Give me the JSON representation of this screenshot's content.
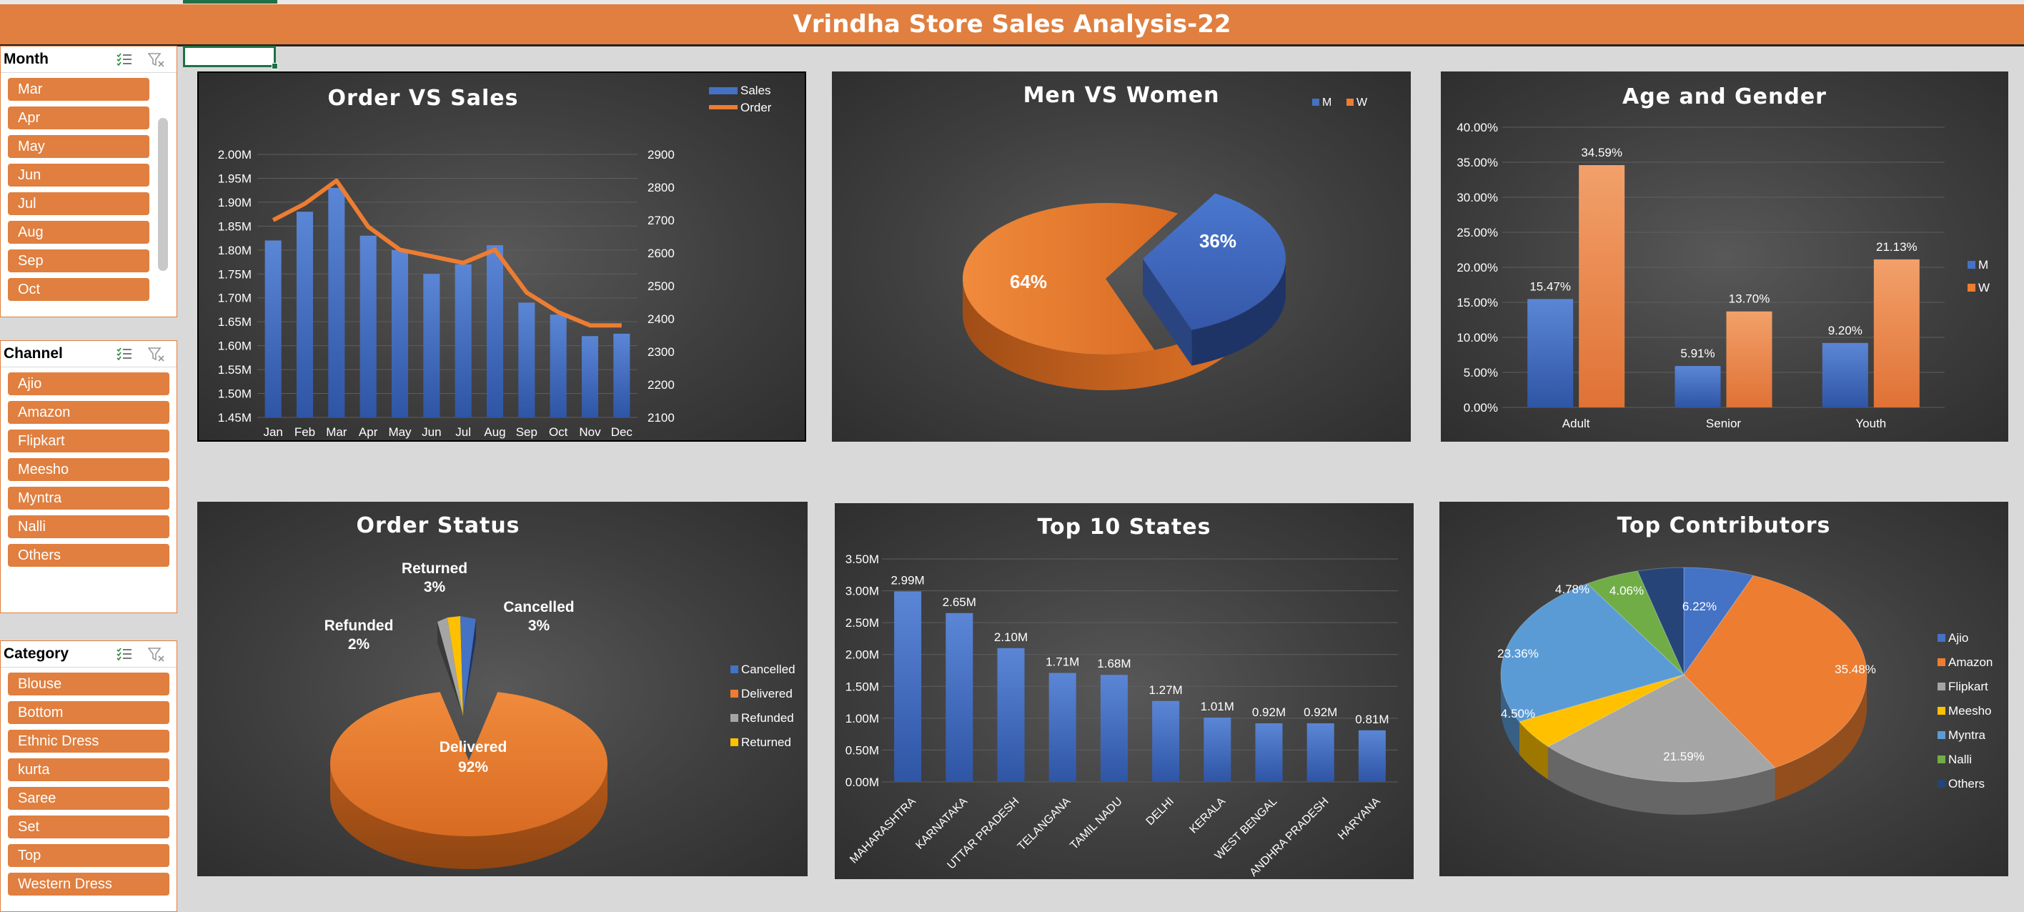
{
  "banner": {
    "title": "Vrindha Store Sales Analysis-22"
  },
  "slicers": {
    "month": {
      "title": "Month",
      "items": [
        "Mar",
        "Apr",
        "May",
        "Jun",
        "Jul",
        "Aug",
        "Sep",
        "Oct"
      ]
    },
    "channel": {
      "title": "Channel",
      "items": [
        "Ajio",
        "Amazon",
        "Flipkart",
        "Meesho",
        "Myntra",
        "Nalli",
        "Others"
      ]
    },
    "category": {
      "title": "Category",
      "items": [
        "Blouse",
        "Bottom",
        "Ethnic Dress",
        "kurta",
        "Saree",
        "Set",
        "Top",
        "Western Dress"
      ]
    }
  },
  "colors": {
    "accent": "#e07f3f",
    "blue": "#4472c4",
    "orange": "#ed7d31",
    "gray": "#a5a5a5",
    "yellow": "#ffc000",
    "lightblue": "#5b9bd5",
    "green": "#70ad47",
    "navy": "#264478"
  },
  "chart_data": [
    {
      "id": "order-vs-sales",
      "type": "bar",
      "title": "Order VS Sales",
      "categories": [
        "Jan",
        "Feb",
        "Mar",
        "Apr",
        "May",
        "Jun",
        "Jul",
        "Aug",
        "Sep",
        "Oct",
        "Nov",
        "Dec"
      ],
      "series": [
        {
          "name": "Sales",
          "type": "bar",
          "axis": "left",
          "values": [
            1.82,
            1.88,
            1.93,
            1.83,
            1.8,
            1.75,
            1.77,
            1.81,
            1.69,
            1.665,
            1.62,
            1.625
          ]
        },
        {
          "name": "Order",
          "type": "line",
          "axis": "right",
          "values": [
            2700,
            2750,
            2820,
            2680,
            2610,
            2590,
            2570,
            2610,
            2480,
            2420,
            2380,
            2380
          ]
        }
      ],
      "left_ticks": [
        "1.45M",
        "1.50M",
        "1.55M",
        "1.60M",
        "1.65M",
        "1.70M",
        "1.75M",
        "1.80M",
        "1.85M",
        "1.90M",
        "1.95M",
        "2.00M"
      ],
      "right_ticks": [
        "2100",
        "2200",
        "2300",
        "2400",
        "2500",
        "2600",
        "2700",
        "2800",
        "2900"
      ],
      "ylim_left": [
        1.45,
        2.0
      ],
      "ylim_right": [
        2100,
        2900
      ],
      "legend": "top-right"
    },
    {
      "id": "men-vs-women",
      "type": "pie",
      "title": "Men VS Women",
      "labels": [
        "M",
        "W"
      ],
      "values": [
        36,
        64
      ],
      "value_labels": [
        "36%",
        "64%"
      ],
      "legend": "top-right"
    },
    {
      "id": "age-and-gender",
      "type": "bar",
      "title": "Age and Gender",
      "categories": [
        "Adult",
        "Senior",
        "Youth"
      ],
      "series": [
        {
          "name": "M",
          "values": [
            15.47,
            5.91,
            9.2
          ],
          "labels": [
            "15.47%",
            "5.91%",
            "9.20%"
          ]
        },
        {
          "name": "W",
          "values": [
            34.59,
            13.7,
            21.13
          ],
          "labels": [
            "34.59%",
            "13.70%",
            "21.13%"
          ]
        }
      ],
      "y_ticks": [
        "0.00%",
        "5.00%",
        "10.00%",
        "15.00%",
        "20.00%",
        "25.00%",
        "30.00%",
        "35.00%",
        "40.00%"
      ],
      "ylim": [
        0,
        40
      ],
      "legend": "right"
    },
    {
      "id": "order-status",
      "type": "pie",
      "title": "Order Status",
      "labels": [
        "Cancelled",
        "Delivered",
        "Refunded",
        "Returned"
      ],
      "values": [
        3,
        92,
        2,
        3
      ],
      "value_labels": [
        "3%",
        "92%",
        "2%",
        "3%"
      ],
      "legend": "right"
    },
    {
      "id": "top-10-states",
      "type": "bar",
      "title": "Top 10 States",
      "categories": [
        "MAHARASHTRA",
        "KARNATAKA",
        "UTTAR PRADESH",
        "TELANGANA",
        "TAMIL NADU",
        "DELHI",
        "KERALA",
        "WEST BENGAL",
        "ANDHRA PRADESH",
        "HARYANA"
      ],
      "values": [
        2.99,
        2.65,
        2.1,
        1.71,
        1.68,
        1.27,
        1.01,
        0.92,
        0.92,
        0.81
      ],
      "value_labels": [
        "2.99M",
        "2.65M",
        "2.10M",
        "1.71M",
        "1.68M",
        "1.27M",
        "1.01M",
        "0.92M",
        "0.92M",
        "0.81M"
      ],
      "y_ticks": [
        "0.00M",
        "0.50M",
        "1.00M",
        "1.50M",
        "2.00M",
        "2.50M",
        "3.00M",
        "3.50M"
      ],
      "ylim": [
        0,
        3.5
      ]
    },
    {
      "id": "top-contributors",
      "type": "pie",
      "title": "Top Contributors",
      "labels": [
        "Ajio",
        "Amazon",
        "Flipkart",
        "Meesho",
        "Myntra",
        "Nalli",
        "Others"
      ],
      "values": [
        6.22,
        35.48,
        21.59,
        4.5,
        23.36,
        4.78,
        4.06
      ],
      "value_labels": [
        "6.22%",
        "35.48%",
        "21.59%",
        "4.50%",
        "23.36%",
        "4.78%",
        "4.06%"
      ],
      "legend": "right"
    }
  ]
}
